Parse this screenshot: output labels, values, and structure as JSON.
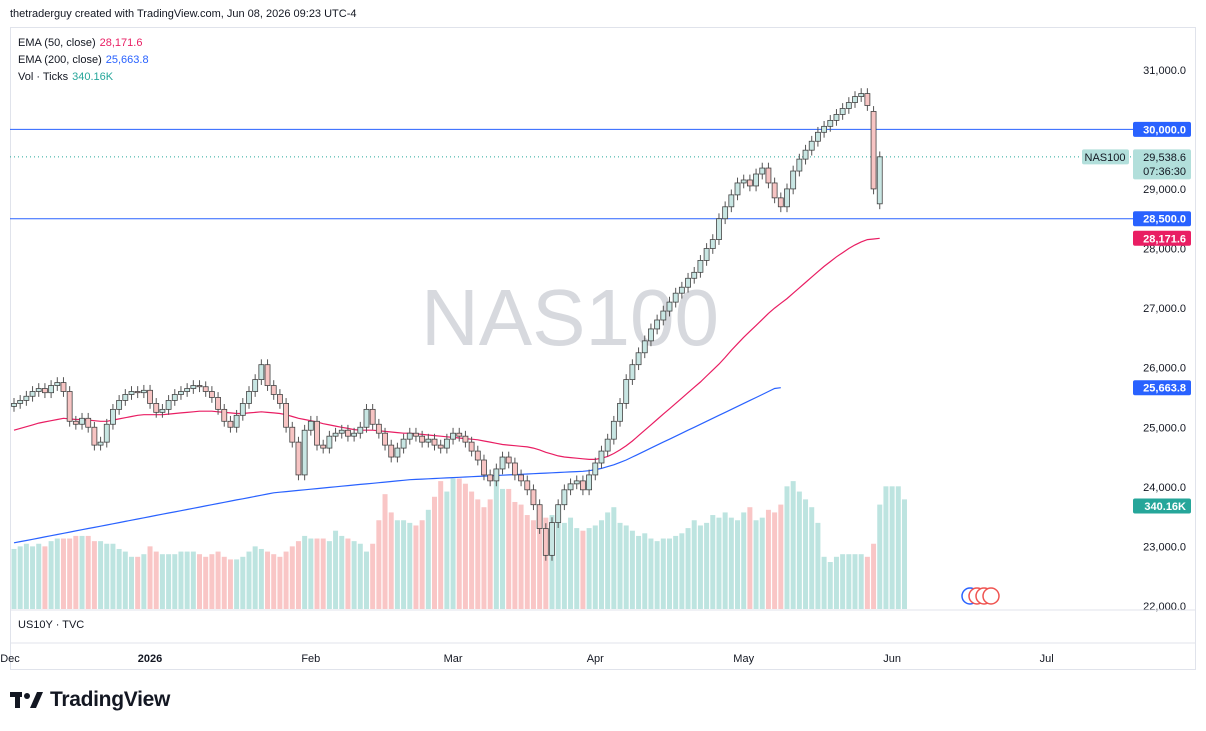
{
  "header": {
    "attribution": "thetraderguy created with TradingView.com, Jun 08, 2026 09:23 UTC-4"
  },
  "legend": {
    "ema50": {
      "label": "EMA (50, close)",
      "value": "28,171.6",
      "color": "#e91e63"
    },
    "ema200": {
      "label": "EMA (200, close)",
      "value": "25,663.8",
      "color": "#2962ff"
    },
    "vol": {
      "label": "Vol · Ticks",
      "value": "340.16K",
      "color": "#26a69a"
    }
  },
  "watermark": "NAS100",
  "lower_pane_label": "US10Y · TVC",
  "brand": {
    "name": "TradingView"
  },
  "chart_data": {
    "type": "candlestick",
    "symbol": "NAS100",
    "price_axis": {
      "ylim": [
        22000,
        31600
      ],
      "ticks": [
        "31,000.0",
        "29,000.0",
        "28,000.0",
        "27,000.0",
        "26,000.0",
        "25,000.0",
        "24,000.0",
        "23,000.0",
        "22,000.0"
      ],
      "tick_values": [
        31000,
        29000,
        28000,
        27000,
        26000,
        25000,
        24000,
        23000,
        22000
      ]
    },
    "time_axis": {
      "labels": [
        "Dec",
        "2026",
        "Feb",
        "Mar",
        "Apr",
        "May",
        "Jun",
        "Jul"
      ],
      "label_index": [
        -1,
        22,
        48,
        71,
        94,
        118,
        142,
        167
      ],
      "bars_total": 175
    },
    "horizontal_lines": [
      {
        "value": 30000,
        "label": "30,000.0",
        "color": "#2962ff"
      },
      {
        "value": 28500,
        "label": "28,500.0",
        "color": "#2962ff"
      }
    ],
    "last_price": {
      "value": 29538.6,
      "label": "29,538.6",
      "countdown": "07:36:30",
      "symbol_tag": "NAS100",
      "color": "#26a69a"
    },
    "ema50_tag": {
      "value": 28171.6,
      "label": "28,171.6",
      "color": "#e91e63"
    },
    "ema200_tag": {
      "value": 25663.8,
      "label": "25,663.8",
      "color": "#2962ff"
    },
    "volume_tag": {
      "label": "340.16K",
      "color": "#26a69a"
    },
    "candles_close": [
      25400,
      25450,
      25520,
      25600,
      25650,
      25580,
      25700,
      25750,
      25600,
      25100,
      25050,
      25150,
      25000,
      24700,
      24750,
      25050,
      25300,
      25450,
      25550,
      25600,
      25580,
      25620,
      25400,
      25250,
      25300,
      25450,
      25550,
      25600,
      25650,
      25700,
      25680,
      25600,
      25500,
      25300,
      25100,
      25000,
      25200,
      25400,
      25600,
      25800,
      26050,
      25700,
      25550,
      25400,
      25000,
      24750,
      24200,
      24950,
      25100,
      24700,
      24650,
      24850,
      24900,
      24950,
      24850,
      24900,
      25000,
      25300,
      25050,
      24900,
      24700,
      24500,
      24650,
      24800,
      24900,
      24850,
      24750,
      24800,
      24700,
      24650,
      24800,
      24900,
      24850,
      24750,
      24600,
      24450,
      24200,
      24100,
      24300,
      24500,
      24400,
      24200,
      24100,
      23950,
      23700,
      23300,
      22850,
      23400,
      23700,
      23950,
      24050,
      24100,
      23950,
      24200,
      24400,
      24600,
      24800,
      25100,
      25400,
      25800,
      26050,
      26250,
      26450,
      26650,
      26800,
      26950,
      27100,
      27250,
      27350,
      27500,
      27600,
      27800,
      28000,
      28150,
      28500,
      28700,
      28900,
      29100,
      29150,
      29050,
      29250,
      29350,
      29100,
      28850,
      28700,
      29000,
      29300,
      29500,
      29650,
      29800,
      29950,
      30050,
      30150,
      30250,
      30350,
      30450,
      30550,
      30600,
      30400,
      29000,
      29538.6
    ],
    "candles_open": [
      25350,
      25400,
      25450,
      25520,
      25600,
      25650,
      25580,
      25700,
      25750,
      25600,
      25100,
      25050,
      25150,
      25000,
      24700,
      24750,
      25050,
      25300,
      25450,
      25550,
      25600,
      25580,
      25620,
      25400,
      25250,
      25300,
      25450,
      25550,
      25600,
      25650,
      25700,
      25680,
      25600,
      25500,
      25300,
      25100,
      25000,
      25200,
      25400,
      25600,
      25800,
      26050,
      25700,
      25550,
      25400,
      25000,
      24750,
      24200,
      24950,
      25100,
      24700,
      24650,
      24850,
      24900,
      24950,
      24850,
      24900,
      25000,
      25300,
      25050,
      24900,
      24700,
      24500,
      24650,
      24800,
      24900,
      24850,
      24750,
      24800,
      24700,
      24650,
      24800,
      24900,
      24850,
      24750,
      24600,
      24450,
      24200,
      24100,
      24300,
      24500,
      24400,
      24200,
      24100,
      23950,
      23700,
      23300,
      22850,
      23400,
      23700,
      23950,
      24050,
      24100,
      23950,
      24200,
      24400,
      24600,
      24800,
      25100,
      25400,
      25800,
      26050,
      26250,
      26450,
      26650,
      26800,
      26950,
      27100,
      27250,
      27350,
      27500,
      27600,
      27800,
      28000,
      28150,
      28500,
      28700,
      28900,
      29100,
      29150,
      29050,
      29250,
      29350,
      29100,
      28850,
      28700,
      29000,
      29300,
      29500,
      29650,
      29800,
      29950,
      30050,
      30150,
      30250,
      30350,
      30450,
      30550,
      30600,
      30300,
      28750
    ],
    "ema50": [
      24950,
      24980,
      25010,
      25040,
      25070,
      25090,
      25110,
      25130,
      25150,
      25140,
      25130,
      25130,
      25120,
      25110,
      25100,
      25100,
      25120,
      25140,
      25160,
      25180,
      25200,
      25210,
      25210,
      25210,
      25210,
      25220,
      25230,
      25240,
      25250,
      25260,
      25270,
      25270,
      25270,
      25260,
      25250,
      25240,
      25230,
      25230,
      25240,
      25250,
      25260,
      25250,
      25240,
      25230,
      25210,
      25180,
      25150,
      25130,
      25110,
      25090,
      25060,
      25040,
      25020,
      25000,
      24980,
      24960,
      24950,
      24950,
      24950,
      24940,
      24930,
      24920,
      24910,
      24900,
      24900,
      24890,
      24880,
      24870,
      24860,
      24850,
      24840,
      24830,
      24820,
      24810,
      24800,
      24790,
      24770,
      24750,
      24730,
      24710,
      24700,
      24690,
      24680,
      24670,
      24650,
      24620,
      24580,
      24550,
      24520,
      24500,
      24490,
      24480,
      24470,
      24460,
      24460,
      24480,
      24510,
      24560,
      24620,
      24690,
      24770,
      24860,
      24950,
      25040,
      25130,
      25220,
      25310,
      25400,
      25490,
      25580,
      25670,
      25760,
      25860,
      25960,
      26060,
      26170,
      26290,
      26400,
      26510,
      26610,
      26710,
      26810,
      26910,
      27000,
      27080,
      27160,
      27250,
      27340,
      27430,
      27520,
      27610,
      27700,
      27780,
      27860,
      27930,
      28000,
      28060,
      28110,
      28150,
      28160,
      28171.6
    ],
    "ema200": [
      23060,
      23080,
      23100,
      23120,
      23140,
      23160,
      23180,
      23200,
      23220,
      23240,
      23260,
      23280,
      23300,
      23320,
      23340,
      23360,
      23380,
      23400,
      23420,
      23440,
      23460,
      23480,
      23500,
      23520,
      23540,
      23560,
      23580,
      23600,
      23620,
      23640,
      23660,
      23680,
      23700,
      23720,
      23740,
      23760,
      23780,
      23800,
      23820,
      23840,
      23860,
      23880,
      23900,
      23910,
      23920,
      23930,
      23940,
      23950,
      23960,
      23970,
      23980,
      23990,
      24000,
      24010,
      24020,
      24030,
      24040,
      24050,
      24060,
      24070,
      24080,
      24090,
      24100,
      24110,
      24120,
      24125,
      24130,
      24135,
      24140,
      24145,
      24150,
      24155,
      24160,
      24165,
      24170,
      24175,
      24180,
      24185,
      24190,
      24195,
      24200,
      24205,
      24210,
      24215,
      24220,
      24225,
      24230,
      24235,
      24240,
      24245,
      24250,
      24255,
      24260,
      24270,
      24290,
      24310,
      24340,
      24370,
      24410,
      24450,
      24500,
      24550,
      24600,
      24650,
      24700,
      24750,
      24800,
      24850,
      24900,
      24950,
      25000,
      25050,
      25100,
      25150,
      25200,
      25250,
      25300,
      25350,
      25400,
      25450,
      25500,
      25550,
      25600,
      25650,
      25663.8
    ],
    "volume_pct": [
      0.23,
      0.24,
      0.25,
      0.24,
      0.25,
      0.24,
      0.26,
      0.27,
      0.27,
      0.27,
      0.28,
      0.28,
      0.28,
      0.26,
      0.26,
      0.25,
      0.25,
      0.23,
      0.22,
      0.2,
      0.2,
      0.21,
      0.24,
      0.22,
      0.21,
      0.21,
      0.21,
      0.22,
      0.22,
      0.22,
      0.21,
      0.2,
      0.21,
      0.22,
      0.2,
      0.19,
      0.19,
      0.2,
      0.22,
      0.24,
      0.23,
      0.22,
      0.21,
      0.2,
      0.22,
      0.24,
      0.26,
      0.28,
      0.27,
      0.27,
      0.27,
      0.26,
      0.3,
      0.28,
      0.27,
      0.26,
      0.25,
      0.22,
      0.25,
      0.34,
      0.44,
      0.37,
      0.34,
      0.34,
      0.33,
      0.32,
      0.34,
      0.38,
      0.43,
      0.49,
      0.45,
      0.5,
      0.5,
      0.48,
      0.45,
      0.42,
      0.39,
      0.42,
      0.49,
      0.46,
      0.46,
      0.41,
      0.4,
      0.36,
      0.34,
      0.36,
      0.35,
      0.36,
      0.35,
      0.33,
      0.35,
      0.31,
      0.3,
      0.31,
      0.32,
      0.34,
      0.37,
      0.39,
      0.33,
      0.32,
      0.3,
      0.28,
      0.29,
      0.27,
      0.26,
      0.27,
      0.27,
      0.28,
      0.29,
      0.31,
      0.34,
      0.32,
      0.33,
      0.36,
      0.35,
      0.37,
      0.35,
      0.34,
      0.37,
      0.39,
      0.34,
      0.35,
      0.38,
      0.37,
      0.4,
      0.47,
      0.49,
      0.45,
      0.42,
      0.39,
      0.33,
      0.2,
      0.18,
      0.2,
      0.21,
      0.21,
      0.21,
      0.21,
      0.2,
      0.25,
      0.4,
      0.47,
      0.47,
      0.47,
      0.42
    ]
  }
}
